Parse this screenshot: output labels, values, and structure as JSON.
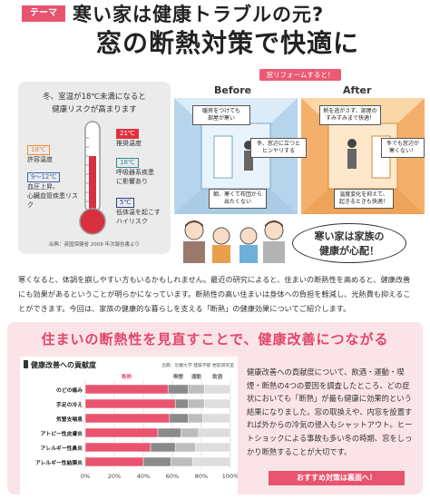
{
  "header": {
    "theme_tag": "テーマ",
    "title_line1": "寒い家は健康トラブルの元?",
    "title_line2": "窓の断熱対策で快適に"
  },
  "thermo_panel": {
    "heading_line1": "冬、室温が18℃未満になると",
    "heading_line2": "健康リスクが高まります",
    "items": [
      {
        "temp": "21℃",
        "label_line1": "推奨温度",
        "label_line2": "",
        "color": "#e03040"
      },
      {
        "temp": "18℃",
        "label_line1": "許容温度",
        "label_line2": "",
        "color": "#ef8a2c"
      },
      {
        "temp": "18℃",
        "label_line1": "呼吸器系疾患",
        "label_line2": "に影響あり",
        "color": "#2f8a8f"
      },
      {
        "temp": "9～12℃",
        "label_line1": "血圧上昇、",
        "label_line2": "心臓血管疾患リスク",
        "color": "#3a66b0"
      },
      {
        "temp": "5℃",
        "label_line1": "低体温を起こす",
        "label_line2": "ハイリスク",
        "color": "#2c3e80"
      }
    ],
    "source": "出典：英国保健省 2009 年次報告書より"
  },
  "illustration": {
    "reno_tag": "窓リフォームすると！",
    "before_label": "Before",
    "after_label": "After",
    "before_callouts": [
      "暖房をつけても\n部屋が寒い",
      "冬、窓辺に立つと\nヒンヤリする",
      "朝、寒くて布団から\n出たくない"
    ],
    "after_callouts": [
      "熱を逃がさず、部屋の\nすみずみまで快適！",
      "冬でも窓辺が\n寒くない！",
      "温度変化を抑えて、\n起きるときも快適！"
    ],
    "bubble_line1": "寒い家は家族の",
    "bubble_line2": "健康が心配！"
  },
  "body_paragraph": "寒くなると、体調を崩しやすい方もいるかもしれません。最近の研究によると、住まいの断熱性を高めると、健康改善にも効果があるということが明らかになっています。断熱性の高い住まいは身体への負担を軽減し、光熱費も抑えることができます。今回は、家族の健康的な暮らしを支える「断熱」の健康効果についてご紹介します。",
  "section": {
    "title": "住まいの断熱性を見直すことで、健康改善につながる",
    "right_text": "健康改善への貢献度について、飲酒・運動・喫煙・断熱の4つの要因を調査したところ、どの症状においても「断熱」が最も健康に効果的という結果になりました。窓の取換えや、内窓を設置すれば外からの冷気の侵入もシャットアウト。ヒートショックによる事故も多い冬の時期、窓をしっかり断熱することが大切です。",
    "cta": "おすすめ対策は裏面へ！"
  },
  "chart_data": {
    "type": "bar",
    "stacked": true,
    "orientation": "horizontal",
    "title": "健康改善への貢献度",
    "source": "出典：近畿大学 建築学部 岩前研究室",
    "categories": [
      "のどの痛み",
      "手足の冷え",
      "気管支喘息",
      "アトピー性皮膚炎",
      "アレルギー性鼻炎",
      "アレルギー性結膜炎"
    ],
    "series": [
      {
        "name": "断熱",
        "color": "#e8546f",
        "values": [
          57,
          62,
          58,
          50,
          45,
          40
        ]
      },
      {
        "name": "喫煙",
        "color": "#8a8a8a",
        "values": [
          14,
          9,
          13,
          16,
          17,
          19
        ]
      },
      {
        "name": "運動",
        "color": "#bdbdbd",
        "values": [
          11,
          11,
          10,
          12,
          14,
          15
        ]
      },
      {
        "name": "飲酒",
        "color": "#dedede",
        "values": [
          18,
          18,
          19,
          22,
          24,
          26
        ]
      }
    ],
    "xlim": [
      0,
      100
    ],
    "ticks": [
      "0%",
      "20%",
      "40%",
      "60%",
      "80%",
      "100%"
    ],
    "grid": true
  }
}
